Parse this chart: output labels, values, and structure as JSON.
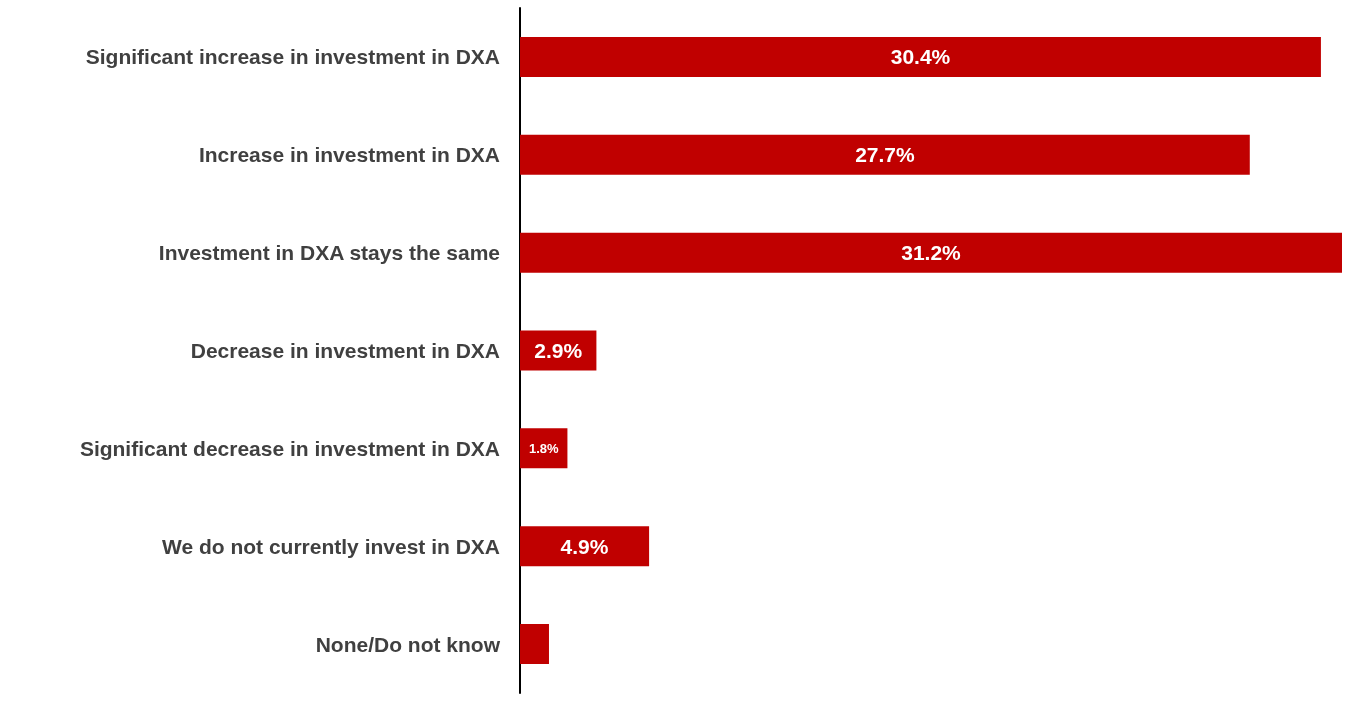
{
  "chart_data": {
    "type": "bar",
    "orientation": "horizontal",
    "categories": [
      "Significant increase in investment in DXA",
      "Increase in investment in DXA",
      "Investment in DXA stays the same",
      "Decrease in investment in DXA",
      "Significant decrease in investment in DXA",
      "We do not currently invest in DXA",
      "None/Do not know"
    ],
    "values": [
      30.4,
      27.7,
      31.2,
      2.9,
      1.8,
      4.9,
      1.1
    ],
    "value_labels": [
      "30.4%",
      "27.7%",
      "31.2%",
      "2.9%",
      "1.8%",
      "4.9%",
      null
    ],
    "color": "#c00000"
  }
}
